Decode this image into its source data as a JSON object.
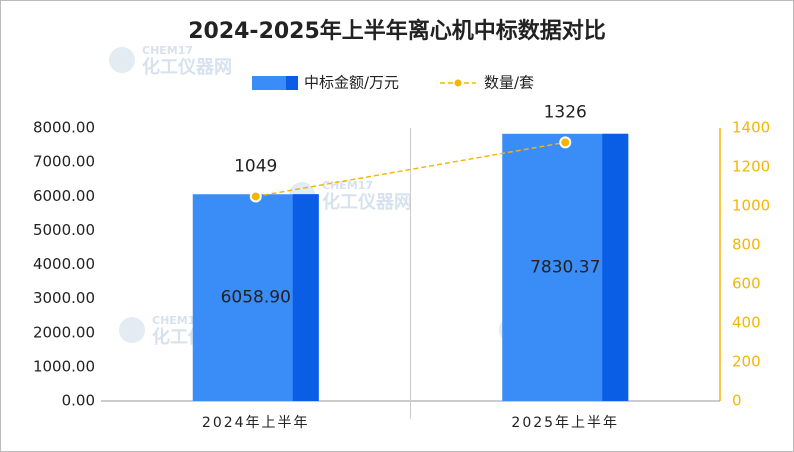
{
  "chart_data": {
    "type": "bar",
    "title": "2024-2025年上半年离心机中标数据对比",
    "watermark": [
      "CHEM17",
      "化工仪器网"
    ],
    "categories": [
      "2024年上半年",
      "2025年上半年"
    ],
    "series": [
      {
        "name": "中标金额/万元",
        "type": "bar",
        "color": "#3a8cf6",
        "values": [
          6058.9,
          7830.37
        ],
        "value_labels": [
          "6058.90",
          "7830.37"
        ]
      },
      {
        "name": "数量/套",
        "type": "line",
        "axis": "y2",
        "color": "#f2b705",
        "values": [
          1049,
          1326
        ]
      }
    ],
    "ylim": [
      0,
      8000
    ],
    "yticks": [
      {
        "value": 0,
        "label": "0.00"
      },
      {
        "value": 1000,
        "label": "1000.00"
      },
      {
        "value": 2000,
        "label": "2000.00"
      },
      {
        "value": 3000,
        "label": "3000.00"
      },
      {
        "value": 4000,
        "label": "4000.00"
      },
      {
        "value": 5000,
        "label": "5000.00"
      },
      {
        "value": 6000,
        "label": "6000.00"
      },
      {
        "value": 7000,
        "label": "7000.00"
      },
      {
        "value": 8000,
        "label": "8000.00"
      }
    ],
    "y2lim": [
      0,
      1400
    ],
    "y2ticks": [
      0,
      200,
      400,
      600,
      800,
      1000,
      1200,
      1400
    ],
    "legend": "top"
  }
}
